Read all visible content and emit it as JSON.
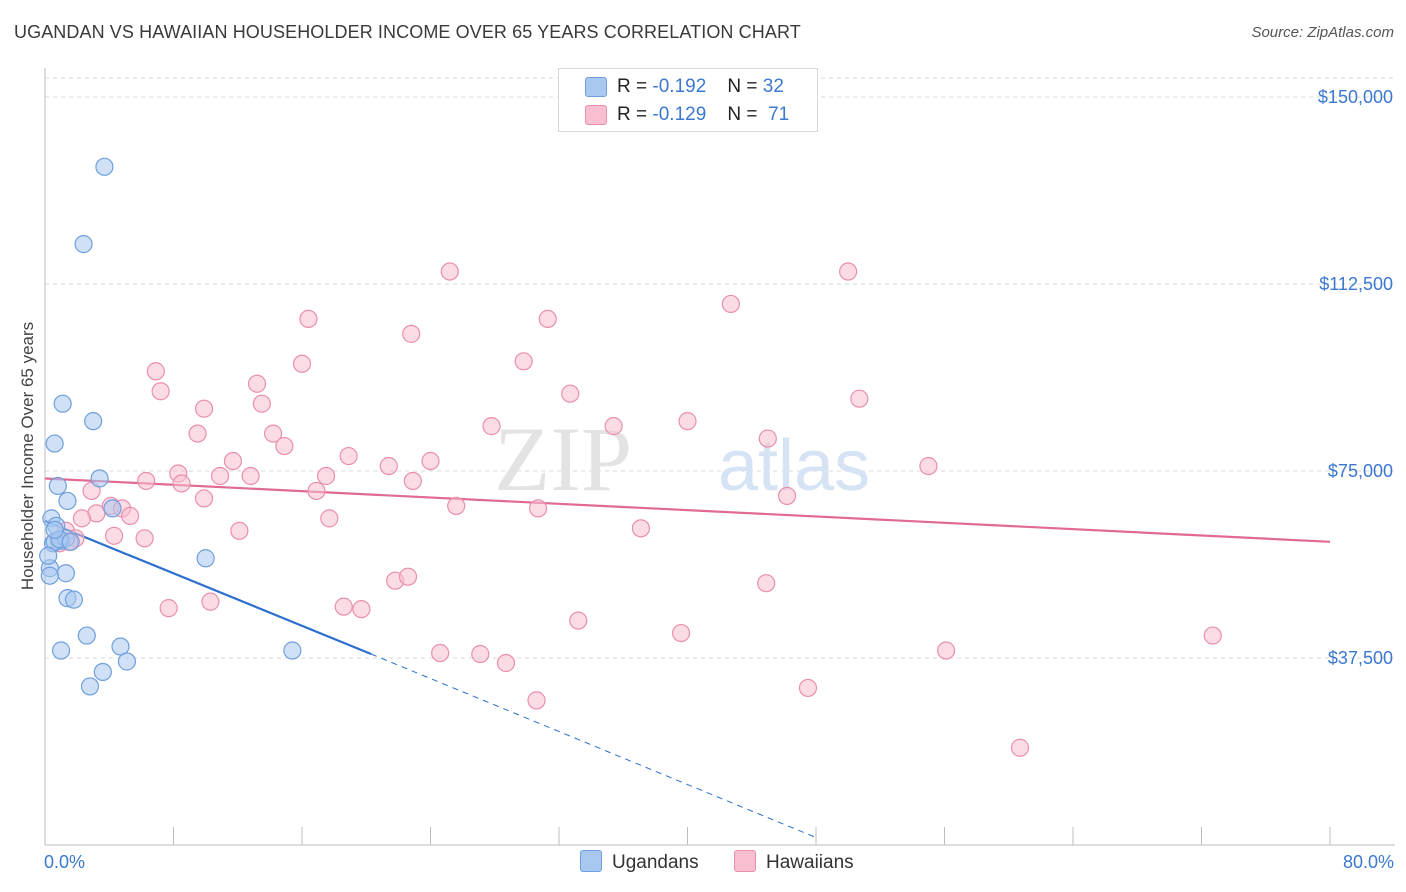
{
  "title": "UGANDAN VS HAWAIIAN HOUSEHOLDER INCOME OVER 65 YEARS CORRELATION CHART",
  "source": "Source: ZipAtlas.com",
  "watermark": {
    "zip": "ZIP",
    "atlas": "atlas"
  },
  "legend": {
    "rows": [
      {
        "r_label": "R =",
        "r_value": "-0.192",
        "n_label": "N =",
        "n_value": "32"
      },
      {
        "r_label": "R =",
        "r_value": "-0.129",
        "n_label": "N =",
        "n_value": "71"
      }
    ]
  },
  "bottom_legend": {
    "series1": "Ugandans",
    "series2": "Hawaiians"
  },
  "x_axis": {
    "min_label": "0.0%",
    "max_label": "80.0%"
  },
  "colors": {
    "ugandans_fill": "#a9c8f0",
    "ugandans_stroke": "#6f9fde",
    "ugandans_line": "#2c6fce",
    "hawaiians_fill": "#f7bfd0",
    "hawaiians_stroke": "#ea8fab",
    "hawaiians_line": "#e06a92",
    "tick": "#3b78d0"
  },
  "chart_data": {
    "type": "scatter",
    "title": "UGANDAN VS HAWAIIAN HOUSEHOLDER INCOME OVER 65 YEARS CORRELATION CHART",
    "xlabel": "",
    "ylabel": "Householder Income Over 65 years",
    "xlim": [
      0,
      80
    ],
    "ylim": [
      0,
      155000
    ],
    "yticks": [
      37500,
      75000,
      112500,
      150000
    ],
    "ytick_labels": [
      "$37,500",
      "$75,000",
      "$112,500",
      "$150,000"
    ],
    "series": [
      {
        "name": "Ugandans",
        "r": -0.192,
        "n": 32,
        "trend": {
          "x0": 0,
          "y0": 65000,
          "x1": 20.3,
          "y1": 38300,
          "dash_to_x": 48,
          "dash_to_y": 1500
        },
        "points": [
          [
            3.7,
            136000
          ],
          [
            2.4,
            120500
          ],
          [
            1.1,
            88500
          ],
          [
            3.0,
            85000
          ],
          [
            0.6,
            80500
          ],
          [
            0.8,
            72000
          ],
          [
            1.4,
            69000
          ],
          [
            3.4,
            73500
          ],
          [
            4.2,
            67500
          ],
          [
            0.4,
            65500
          ],
          [
            0.7,
            64000
          ],
          [
            1.0,
            61000
          ],
          [
            0.5,
            60500
          ],
          [
            0.6,
            60800
          ],
          [
            1.3,
            61500
          ],
          [
            0.3,
            55500
          ],
          [
            1.3,
            54500
          ],
          [
            10.0,
            57500
          ],
          [
            1.4,
            49500
          ],
          [
            1.8,
            49200
          ],
          [
            2.6,
            42000
          ],
          [
            1.0,
            39000
          ],
          [
            4.7,
            39800
          ],
          [
            5.1,
            36800
          ],
          [
            3.6,
            34700
          ],
          [
            2.8,
            31800
          ],
          [
            15.4,
            39000
          ],
          [
            0.9,
            61300
          ],
          [
            0.6,
            63200
          ],
          [
            1.6,
            60800
          ],
          [
            0.2,
            58000
          ],
          [
            0.3,
            54000
          ]
        ]
      },
      {
        "name": "Hawaiians",
        "r": -0.129,
        "n": 71,
        "trend": {
          "x0": 0,
          "y0": 73500,
          "x1": 80,
          "y1": 60800
        },
        "points": [
          [
            25.2,
            115000
          ],
          [
            50.0,
            115000
          ],
          [
            42.7,
            108500
          ],
          [
            16.4,
            105500
          ],
          [
            31.3,
            105500
          ],
          [
            22.8,
            102500
          ],
          [
            16.0,
            96500
          ],
          [
            29.8,
            97000
          ],
          [
            6.9,
            95000
          ],
          [
            7.2,
            91000
          ],
          [
            13.2,
            92500
          ],
          [
            32.7,
            90500
          ],
          [
            50.7,
            89500
          ],
          [
            9.9,
            87500
          ],
          [
            13.5,
            88500
          ],
          [
            27.8,
            84000
          ],
          [
            35.4,
            84000
          ],
          [
            40.0,
            85000
          ],
          [
            9.5,
            82500
          ],
          [
            14.2,
            82500
          ],
          [
            45.0,
            81500
          ],
          [
            11.7,
            77000
          ],
          [
            18.9,
            78000
          ],
          [
            14.9,
            80000
          ],
          [
            21.4,
            76000
          ],
          [
            24.0,
            77000
          ],
          [
            55.0,
            76000
          ],
          [
            8.3,
            74500
          ],
          [
            10.9,
            74000
          ],
          [
            12.8,
            74000
          ],
          [
            17.5,
            74000
          ],
          [
            22.9,
            73000
          ],
          [
            6.3,
            73000
          ],
          [
            8.5,
            72500
          ],
          [
            2.9,
            71000
          ],
          [
            16.9,
            71000
          ],
          [
            46.2,
            70000
          ],
          [
            9.9,
            69500
          ],
          [
            25.6,
            68000
          ],
          [
            30.7,
            67500
          ],
          [
            4.1,
            68000
          ],
          [
            4.8,
            67500
          ],
          [
            3.2,
            66500
          ],
          [
            5.3,
            66000
          ],
          [
            2.3,
            65500
          ],
          [
            17.7,
            65500
          ],
          [
            12.1,
            63000
          ],
          [
            37.1,
            63500
          ],
          [
            1.3,
            63000
          ],
          [
            6.2,
            61500
          ],
          [
            4.3,
            62000
          ],
          [
            1.9,
            61500
          ],
          [
            0.9,
            60500
          ],
          [
            1.5,
            60800
          ],
          [
            21.8,
            53000
          ],
          [
            22.6,
            53800
          ],
          [
            44.9,
            52500
          ],
          [
            7.7,
            47500
          ],
          [
            10.3,
            48800
          ],
          [
            18.6,
            47800
          ],
          [
            19.7,
            47300
          ],
          [
            33.2,
            45000
          ],
          [
            39.6,
            42500
          ],
          [
            72.7,
            42000
          ],
          [
            24.6,
            38500
          ],
          [
            27.1,
            38300
          ],
          [
            28.7,
            36500
          ],
          [
            56.1,
            39000
          ],
          [
            47.5,
            31500
          ],
          [
            30.6,
            29000
          ],
          [
            60.7,
            19500
          ]
        ]
      }
    ]
  }
}
